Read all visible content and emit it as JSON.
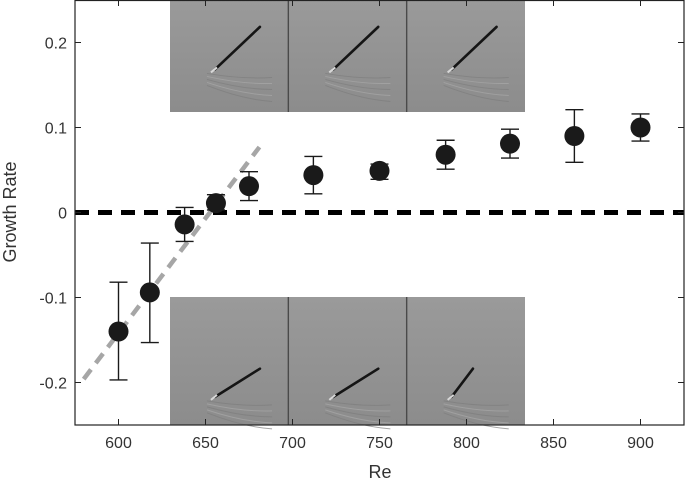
{
  "chart_data": {
    "type": "scatter",
    "xlabel": "Re",
    "ylabel": "Growth Rate",
    "xlim": [
      575,
      925
    ],
    "ylim": [
      -0.25,
      0.25
    ],
    "xticks": [
      600,
      650,
      700,
      750,
      800,
      850,
      900
    ],
    "yticks": [
      -0.2,
      -0.1,
      0,
      0.1,
      0.2
    ],
    "xtick_labels": [
      "600",
      "650",
      "700",
      "750",
      "800",
      "850",
      "900"
    ],
    "ytick_labels": [
      "-0.2",
      "-0.1",
      "0",
      "0.1",
      "0.2"
    ],
    "grid": false,
    "series": [
      {
        "marker": "circle",
        "color": "#1a1a1a",
        "x": [
          600,
          618,
          638,
          656,
          675,
          712,
          750,
          788,
          825,
          862,
          900
        ],
        "y": [
          -0.14,
          -0.094,
          -0.014,
          0.011,
          0.031,
          0.044,
          0.049,
          0.068,
          0.081,
          0.09,
          0.1
        ],
        "err_low": [
          0.057,
          0.059,
          0.02,
          0.008,
          0.017,
          0.022,
          0.01,
          0.017,
          0.017,
          0.031,
          0.016
        ],
        "err_high": [
          0.058,
          0.058,
          0.02,
          0.01,
          0.017,
          0.022,
          0.008,
          0.017,
          0.017,
          0.031,
          0.016
        ]
      }
    ],
    "reference_lines": [
      {
        "style": "dashed",
        "color": "#000000",
        "x": [
          575,
          925
        ],
        "y": [
          0,
          0
        ]
      },
      {
        "style": "dashed",
        "color": "#a6a6a6",
        "x": [
          580,
          681
        ],
        "y": [
          -0.196,
          0.077
        ]
      }
    ],
    "inset_images": [
      {
        "position": "top",
        "frames": 3
      },
      {
        "position": "bottom",
        "frames": 3
      }
    ]
  }
}
